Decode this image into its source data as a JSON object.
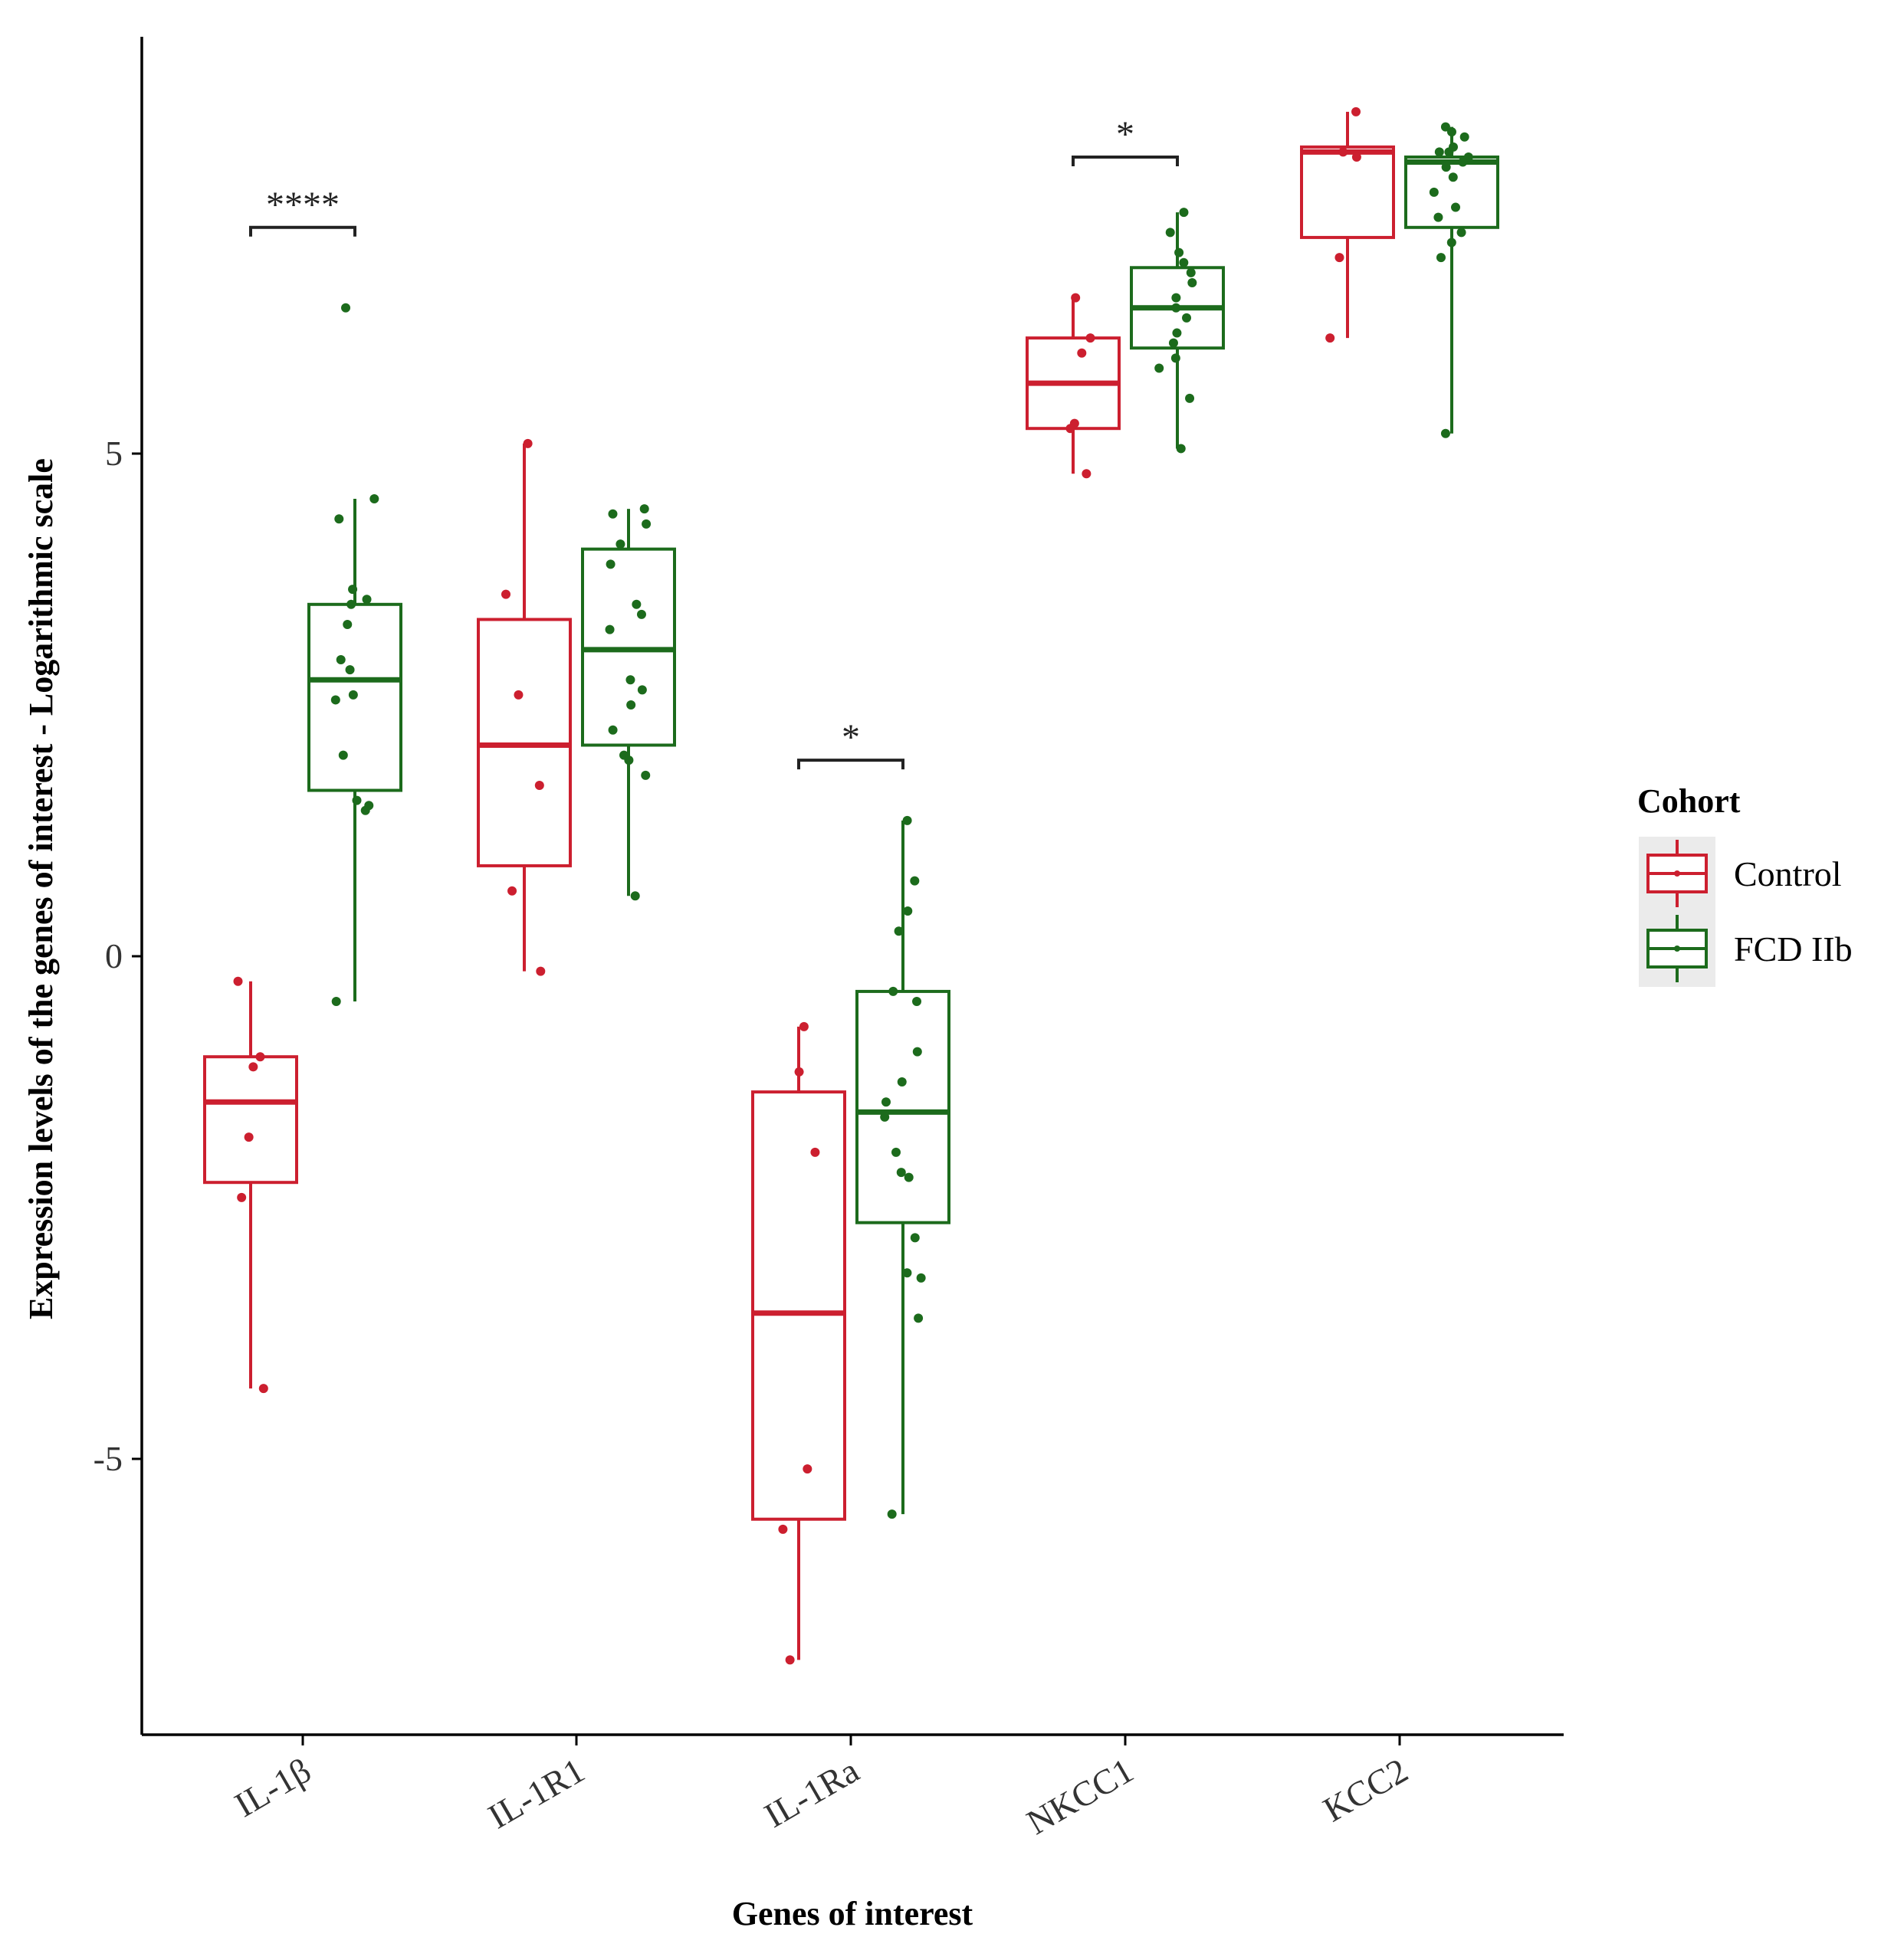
{
  "chart_data": {
    "type": "box",
    "xlabel": "Genes of interest",
    "ylabel": "Expression levels of the genes of interest - Logarithmic scale",
    "categories": [
      "IL-1β",
      "IL-1R1",
      "IL-1Ra",
      "NKCC1",
      "KCC2"
    ],
    "y_ticks": [
      -5,
      0,
      5
    ],
    "y_tick_labels": [
      "-5",
      "0",
      "5"
    ],
    "ylim": [
      -7.9,
      9.0
    ],
    "legend_title": "Cohort",
    "legend_position": "right",
    "series": [
      {
        "name": "Control",
        "color": "#cc1f2f",
        "boxes": [
          {
            "category": "IL-1β",
            "min": -4.3,
            "q1": -2.25,
            "median": -1.45,
            "q3": -1.0,
            "max": -0.25,
            "points": [
              -0.25,
              -1.0,
              -1.1,
              -1.8,
              -2.4,
              -4.3
            ]
          },
          {
            "category": "IL-1R1",
            "min": -0.15,
            "q1": 0.9,
            "median": 2.1,
            "q3": 3.35,
            "max": 5.1,
            "points": [
              5.1,
              3.6,
              2.6,
              1.7,
              0.65,
              -0.15
            ]
          },
          {
            "category": "IL-1Ra",
            "min": -7.0,
            "q1": -5.6,
            "median": -3.55,
            "q3": -1.35,
            "max": -0.7,
            "points": [
              -0.7,
              -1.15,
              -1.95,
              -5.1,
              -5.7,
              -7.0
            ]
          },
          {
            "category": "NKCC1",
            "min": 4.8,
            "q1": 5.25,
            "median": 5.7,
            "q3": 6.15,
            "max": 6.55,
            "points": [
              6.55,
              6.15,
              6.0,
              5.3,
              5.25,
              4.8
            ]
          },
          {
            "category": "KCC2",
            "min": 6.15,
            "q1": 7.15,
            "median": 8.0,
            "q3": 8.05,
            "max": 8.4,
            "points": [
              8.4,
              8.0,
              7.95,
              6.95,
              6.15
            ]
          }
        ]
      },
      {
        "name": "FCD IIb",
        "color": "#1c6b1c",
        "boxes": [
          {
            "category": "IL-1β",
            "min": -0.45,
            "q1": 1.65,
            "median": 2.75,
            "q3": 3.5,
            "max": 4.55,
            "points": [
              6.45,
              4.55,
              4.35,
              3.65,
              3.55,
              3.5,
              3.3,
              2.95,
              2.85,
              2.6,
              2.55,
              2.0,
              1.55,
              1.5,
              1.45,
              -0.45
            ]
          },
          {
            "category": "IL-1R1",
            "min": 0.6,
            "q1": 2.1,
            "median": 3.05,
            "q3": 4.05,
            "max": 4.45,
            "points": [
              4.45,
              4.4,
              4.3,
              4.1,
              3.9,
              3.5,
              3.4,
              3.25,
              2.75,
              2.65,
              2.5,
              2.25,
              2.0,
              1.95,
              1.8,
              0.6
            ]
          },
          {
            "category": "IL-1Ra",
            "min": -5.55,
            "q1": -2.65,
            "median": -1.55,
            "q3": -0.35,
            "max": 1.35,
            "points": [
              1.35,
              0.75,
              0.45,
              0.25,
              -0.35,
              -0.45,
              -0.95,
              -1.25,
              -1.45,
              -1.6,
              -1.95,
              -2.15,
              -2.2,
              -2.8,
              -3.15,
              -3.2,
              -3.6,
              -5.55
            ]
          },
          {
            "category": "NKCC1",
            "min": 5.05,
            "q1": 6.05,
            "median": 6.45,
            "q3": 6.85,
            "max": 7.4,
            "points": [
              7.4,
              7.2,
              7.0,
              6.9,
              6.8,
              6.7,
              6.55,
              6.45,
              6.35,
              6.2,
              6.1,
              5.95,
              5.85,
              5.55,
              5.05
            ]
          },
          {
            "category": "KCC2",
            "min": 5.2,
            "q1": 7.25,
            "median": 7.9,
            "q3": 7.95,
            "max": 8.25,
            "points": [
              8.25,
              8.2,
              8.15,
              8.05,
              8.0,
              8.0,
              7.95,
              7.9,
              7.85,
              7.75,
              7.6,
              7.45,
              7.35,
              7.2,
              7.1,
              6.95,
              5.2
            ]
          }
        ]
      }
    ],
    "significance": [
      {
        "category": "IL-1β",
        "label": "****",
        "y": 7.25
      },
      {
        "category": "IL-1Ra",
        "label": "*",
        "y": 1.95
      },
      {
        "category": "NKCC1",
        "label": "*",
        "y": 7.95
      }
    ]
  }
}
